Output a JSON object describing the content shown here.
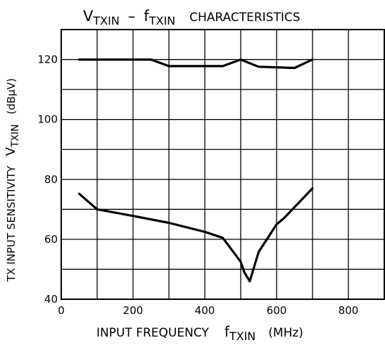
{
  "chart_data": {
    "type": "line",
    "title": {
      "main": "V",
      "sub": "TXIN",
      "dash": "–",
      "main2": "f",
      "sub2": "TXIN",
      "rest": "CHARACTERISTICS"
    },
    "xlabel": {
      "main": "INPUT FREQUENCY",
      "sym": "f",
      "sub": "TXIN",
      "unit": "(MHz)"
    },
    "ylabel": {
      "main": "TX INPUT SENSITIVITY",
      "sym": "V",
      "sub": "TXIN",
      "unit": "(dBμV)"
    },
    "xlim": [
      0,
      900
    ],
    "ylim": [
      40,
      130
    ],
    "xticks": [
      0,
      200,
      400,
      600,
      800
    ],
    "yticks": [
      40,
      60,
      80,
      100,
      120
    ],
    "xgrid": [
      0,
      100,
      200,
      300,
      400,
      500,
      600,
      700,
      800,
      900
    ],
    "ygrid": [
      40,
      50,
      60,
      70,
      80,
      90,
      100,
      110,
      120,
      130
    ],
    "grid": true,
    "series": [
      {
        "x": [
          50,
          100,
          250,
          300,
          450,
          500,
          550,
          650,
          700
        ],
        "y": [
          120,
          120,
          120,
          117.8,
          117.8,
          120,
          117.6,
          117.2,
          120
        ]
      },
      {
        "x": [
          50,
          100,
          200,
          300,
          400,
          450,
          500,
          510,
          525,
          550,
          600,
          620,
          700
        ],
        "y": [
          75.2,
          70,
          67.8,
          65.5,
          62.5,
          60.5,
          52.5,
          49,
          46,
          55.8,
          65,
          67,
          77
        ]
      }
    ]
  }
}
